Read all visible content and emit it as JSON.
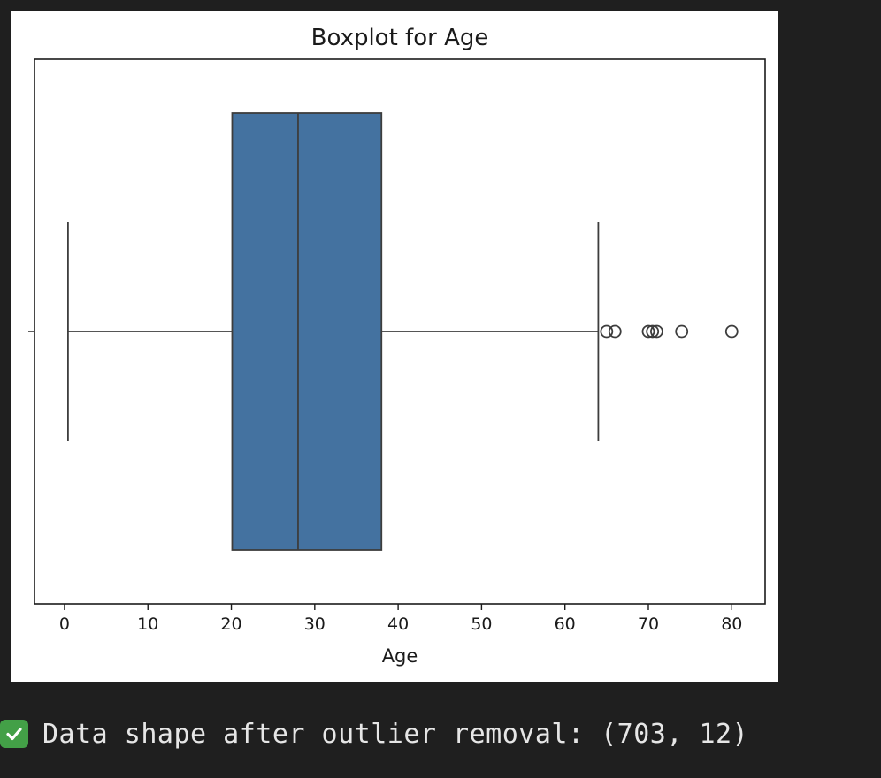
{
  "chart_data": {
    "type": "boxplot",
    "title": "Boxplot for Age",
    "xlabel": "Age",
    "ylabel": "",
    "xlim": [
      -3.6,
      84
    ],
    "xticks": [
      0,
      10,
      20,
      30,
      40,
      50,
      60,
      70,
      80
    ],
    "orientation": "horizontal",
    "grid": false,
    "box_color": "#4472a0",
    "edge_color": "#3d3d3d",
    "box": {
      "whisker_low": 0.42,
      "q1": 20.1,
      "median": 28,
      "q3": 38,
      "whisker_high": 64,
      "outliers": [
        65,
        66,
        70,
        70.5,
        71,
        74,
        80
      ]
    }
  },
  "output": {
    "icon": "check-mark-icon",
    "text": "Data shape after outlier removal: (703, 12)"
  }
}
